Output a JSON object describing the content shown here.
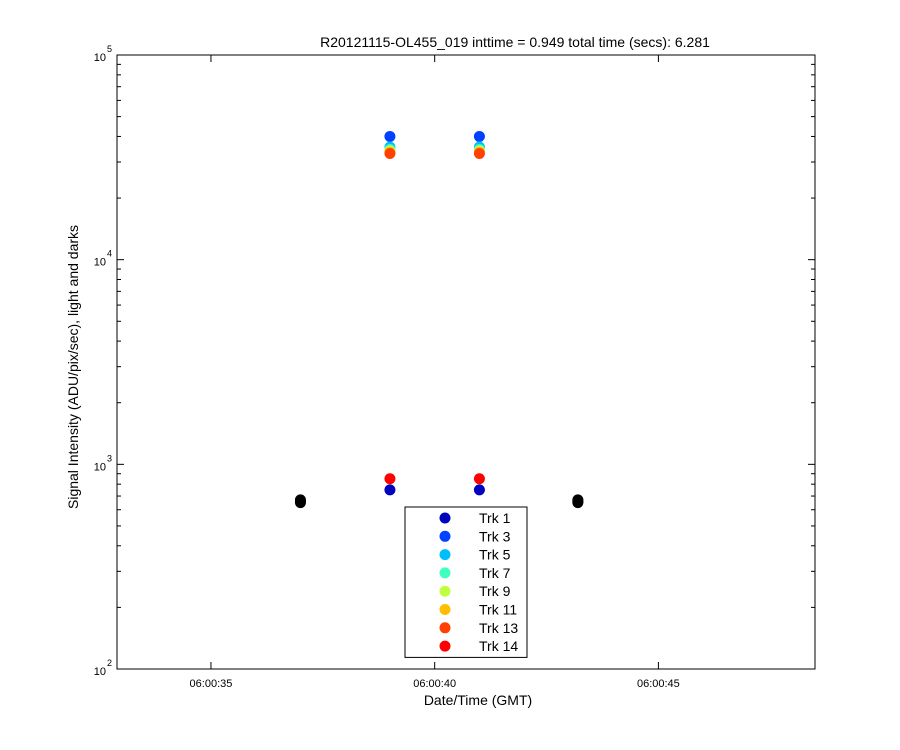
{
  "chart_data": {
    "type": "scatter",
    "title": "R20121115-OL455_019 inttime = 0.949 total time (secs): 6.281",
    "xlabel": "Date/Time (GMT)",
    "ylabel": "Signal Intensity (ADU/pix/sec), light and darks",
    "y_scale": "log",
    "ylim": [
      100,
      100000
    ],
    "xlim": [
      "06:00:32.9",
      "06:00:48.5"
    ],
    "x_ticks": [
      "06:00:35",
      "06:00:40",
      "06:00:45"
    ],
    "y_ticks": [
      {
        "base": "10",
        "exp": "2",
        "value": 100
      },
      {
        "base": "10",
        "exp": "3",
        "value": 1000
      },
      {
        "base": "10",
        "exp": "4",
        "value": 10000
      },
      {
        "base": "10",
        "exp": "5",
        "value": 100000
      }
    ],
    "legend_position": "bottom-center",
    "series": [
      {
        "name": "Trk 1",
        "color": "#0000bf",
        "points": [
          [
            "06:00:39.0",
            750
          ],
          [
            "06:00:41.0",
            750
          ]
        ]
      },
      {
        "name": "Trk 3",
        "color": "#0040ff",
        "points": [
          [
            "06:00:39.0",
            40000
          ],
          [
            "06:00:41.0",
            40000
          ]
        ]
      },
      {
        "name": "Trk 5",
        "color": "#00bfff",
        "points": [
          [
            "06:00:39.0",
            35500
          ],
          [
            "06:00:41.0",
            35500
          ]
        ]
      },
      {
        "name": "Trk 7",
        "color": "#40ffbf",
        "points": [
          [
            "06:00:39.0",
            34500
          ],
          [
            "06:00:41.0",
            34500
          ]
        ]
      },
      {
        "name": "Trk 9",
        "color": "#bfff40",
        "points": [
          [
            "06:00:39.0",
            34000
          ],
          [
            "06:00:41.0",
            34000
          ]
        ]
      },
      {
        "name": "Trk 11",
        "color": "#ffbf00",
        "points": [
          [
            "06:00:39.0",
            33500
          ],
          [
            "06:00:41.0",
            33500
          ]
        ]
      },
      {
        "name": "Trk 13",
        "color": "#ff4000",
        "points": [
          [
            "06:00:39.0",
            33000
          ],
          [
            "06:00:41.0",
            33000
          ]
        ]
      },
      {
        "name": "Trk 14",
        "color": "#ff0000",
        "points": [
          [
            "06:00:39.0",
            850
          ],
          [
            "06:00:41.0",
            850
          ]
        ]
      }
    ],
    "dark_points": {
      "color": "#000000",
      "points": [
        [
          "06:00:37.0",
          650
        ],
        [
          "06:00:37.0",
          660
        ],
        [
          "06:00:37.0",
          670
        ],
        [
          "06:00:43.2",
          650
        ],
        [
          "06:00:43.2",
          660
        ],
        [
          "06:00:43.2",
          670
        ]
      ]
    }
  }
}
